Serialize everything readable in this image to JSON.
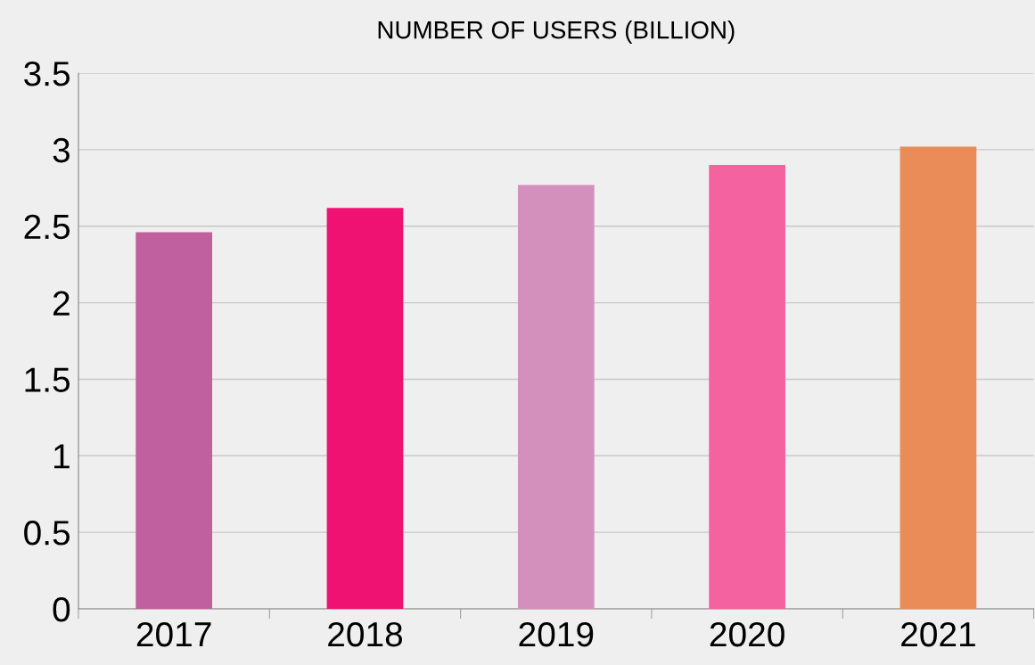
{
  "chart_data": {
    "type": "bar",
    "title": "NUMBER OF USERS (BILLION)",
    "categories": [
      "2017",
      "2018",
      "2019",
      "2020",
      "2021"
    ],
    "values": [
      2.46,
      2.62,
      2.77,
      2.9,
      3.02
    ],
    "colors": [
      "#c0609e",
      "#ef1272",
      "#d490bd",
      "#f462a0",
      "#ea8c57"
    ],
    "ylim": [
      0,
      3.5
    ],
    "yticks": [
      0,
      0.5,
      1,
      1.5,
      2,
      2.5,
      3,
      3.5
    ],
    "grid": "y",
    "legend": false
  }
}
